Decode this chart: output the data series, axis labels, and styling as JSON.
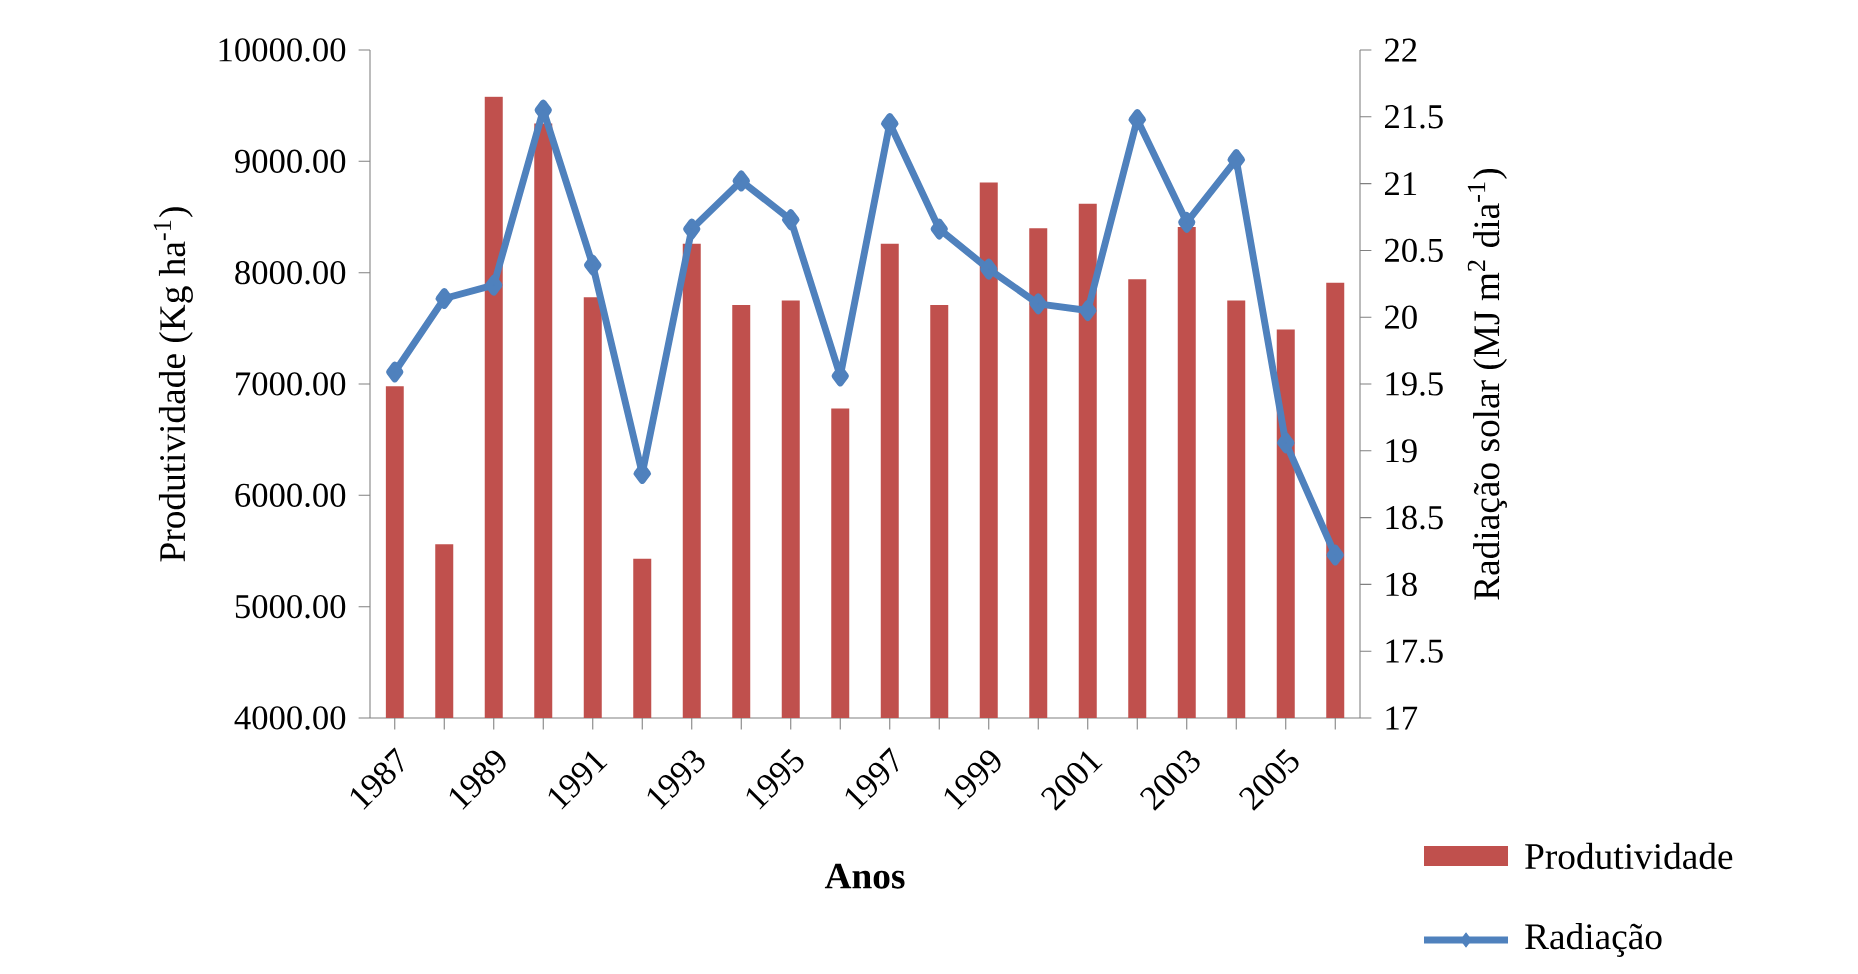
{
  "chart_data": {
    "type": "bar",
    "xlabel": "Anos",
    "ylabel": "Produtividade (Kg  ha$^{-1}$)",
    "y2label": "Radiação solar (MJ m$^{2}$ dia$^{-1}$)",
    "categories": [
      "1987",
      null,
      "1989",
      null,
      "1991",
      null,
      "1993",
      null,
      "1995",
      null,
      "1997",
      null,
      "1999",
      null,
      "2001",
      null,
      "2003",
      null,
      "2005",
      null
    ],
    "series": [
      {
        "name": "Produtividade",
        "color": "#c0504d",
        "values": [
          6980,
          5560,
          9580,
          9340,
          7780,
          5430,
          8260,
          7710,
          7750,
          6780,
          8260,
          7710,
          8810,
          8400,
          8620,
          7940,
          8410,
          7750,
          7490,
          7910
        ]
      },
      {
        "name": "Radiação",
        "type": "line",
        "axis": "y2",
        "color": "#4f81bd",
        "marker": "diamond",
        "values": [
          19.59,
          20.14,
          20.24,
          21.55,
          20.39,
          18.83,
          20.66,
          21.02,
          20.73,
          19.56,
          21.45,
          20.66,
          20.36,
          20.1,
          20.05,
          21.48,
          20.71,
          21.18,
          19.06,
          18.22
        ]
      }
    ],
    "ylim": [
      4000,
      10000
    ],
    "yticks": [
      {
        "value": 4000,
        "label": "4000.00"
      },
      {
        "value": 5000,
        "label": "5000.00"
      },
      {
        "value": 6000,
        "label": "6000.00"
      },
      {
        "value": 7000,
        "label": "7000.00"
      },
      {
        "value": 8000,
        "label": "8000.00"
      },
      {
        "value": 9000,
        "label": "9000.00"
      },
      {
        "value": 10000,
        "label": "10000.00"
      }
    ],
    "y2lim": [
      17,
      22
    ],
    "y2ticks": [
      17,
      17.5,
      18,
      18.5,
      19,
      19.5,
      20,
      20.5,
      21,
      21.5,
      22
    ],
    "grid": false,
    "legend": "bottom right"
  }
}
